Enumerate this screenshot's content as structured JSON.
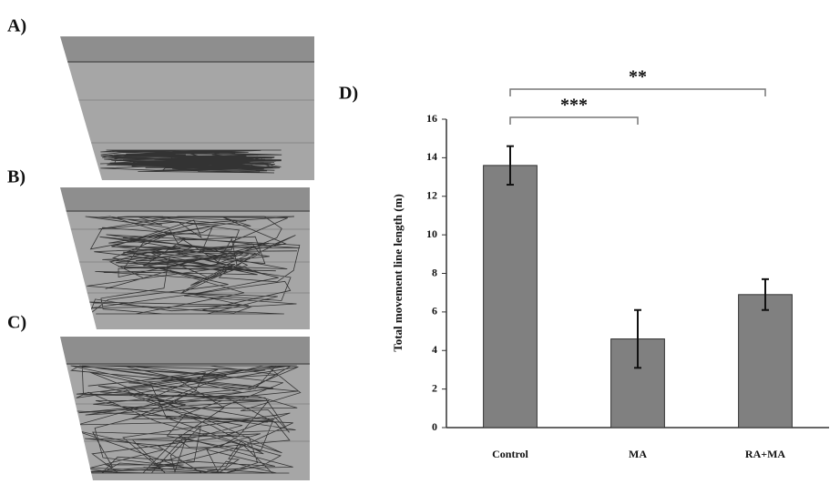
{
  "panel_labels": [
    "A)",
    "B)",
    "C)"
  ],
  "chart_data": {
    "type": "bar",
    "title": "D)",
    "ylabel": "Total movement line length (m)",
    "categories": [
      "Control",
      "MA",
      "RA+MA"
    ],
    "values": [
      13.6,
      4.6,
      6.9
    ],
    "errors": [
      1.0,
      1.5,
      0.8
    ],
    "color": "#808080",
    "ylim": [
      0,
      16
    ],
    "yticks": [
      0,
      2,
      4,
      6,
      8,
      10,
      12,
      14,
      16
    ],
    "annotations": [
      "***",
      "**"
    ]
  }
}
